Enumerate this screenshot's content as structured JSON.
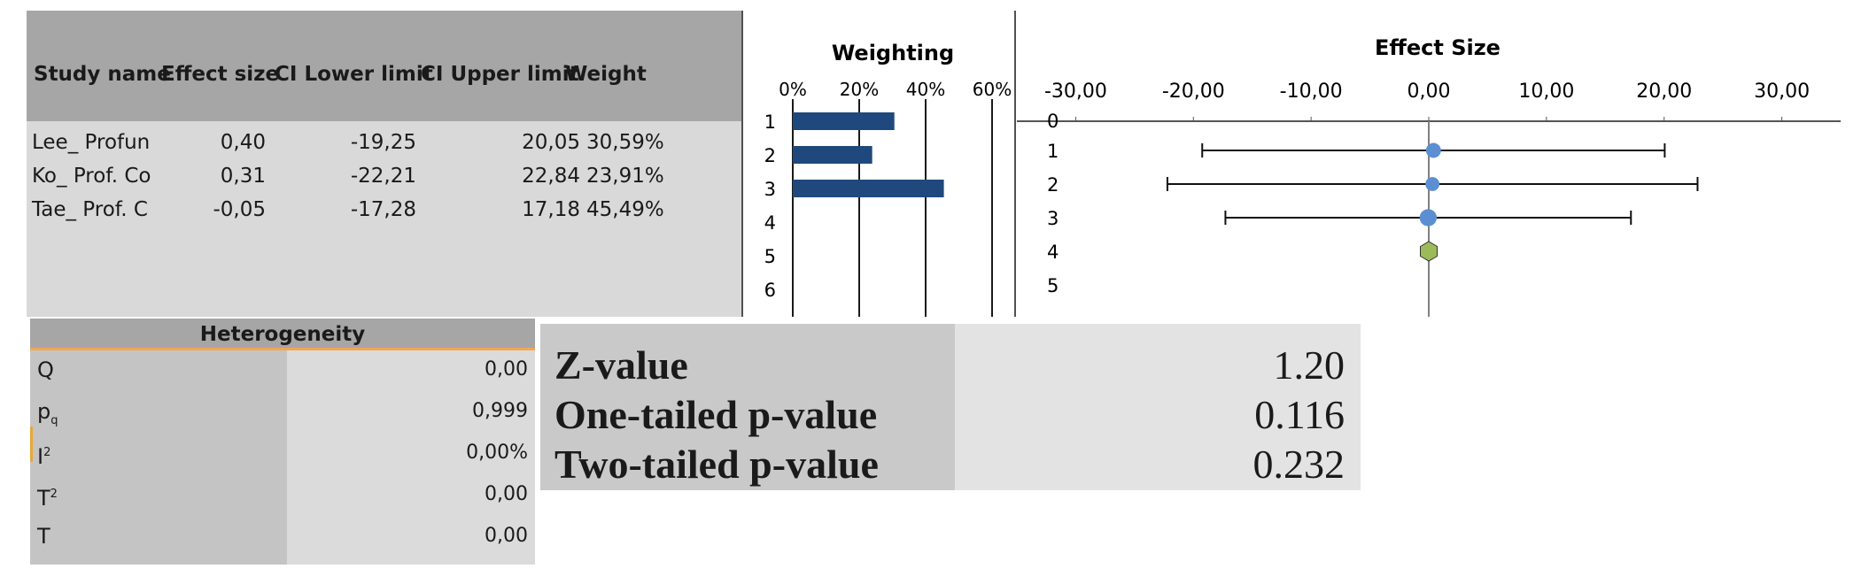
{
  "study_table": {
    "headers": {
      "study": "Study name",
      "effect": "Effect size",
      "lower": "CI Lower limit",
      "upper": "CI Upper limit",
      "weight": "Weight"
    },
    "rows": [
      {
        "study": "Lee_ Profun",
        "effect": "0,40",
        "lower": "-19,25",
        "upper": "20,05",
        "weight": "30,59%"
      },
      {
        "study": "Ko_ Prof. Co",
        "effect": "0,31",
        "lower": "-22,21",
        "upper": "22,84",
        "weight": "23,91%"
      },
      {
        "study": "Tae_ Prof. C",
        "effect": "-0,05",
        "lower": "-17,28",
        "upper": "17,18",
        "weight": "45,49%"
      }
    ]
  },
  "chart_data": [
    {
      "type": "bar",
      "title": "Weighting",
      "orientation": "horizontal",
      "x_ticks": [
        "0%",
        "20%",
        "40%",
        "60%"
      ],
      "xlim": [
        0,
        60
      ],
      "categories": [
        "1",
        "2",
        "3",
        "4",
        "5",
        "6"
      ],
      "values": [
        30.59,
        23.91,
        45.49,
        null,
        null,
        null
      ],
      "bar_color": "#1f497d",
      "grid": true
    },
    {
      "type": "scatter",
      "title": "Effect Size",
      "x_ticks": [
        "-30,00",
        "-20,00",
        "-10,00",
        "0,00",
        "10,00",
        "20,00",
        "30,00"
      ],
      "xlim": [
        -35,
        35
      ],
      "y_ticks": [
        "0",
        "1",
        "2",
        "3",
        "4",
        "5"
      ],
      "series": [
        {
          "marker": "circle",
          "color": "#5b8fd1",
          "points": [
            {
              "y": 1,
              "x": 0.4,
              "lower": -19.25,
              "upper": 20.05,
              "weight": 30.59
            },
            {
              "y": 2,
              "x": 0.31,
              "lower": -22.21,
              "upper": 22.84,
              "weight": 23.91
            },
            {
              "y": 3,
              "x": -0.05,
              "lower": -17.28,
              "upper": 17.18,
              "weight": 45.49
            }
          ]
        },
        {
          "marker": "hexagon",
          "color": "#9bbb59",
          "points": [
            {
              "y": 4,
              "x": 0.0
            }
          ]
        }
      ]
    }
  ],
  "heterogeneity": {
    "title": "Heterogeneity",
    "rows": [
      {
        "label": "Q",
        "sub": "",
        "sup": "",
        "value": "0,00"
      },
      {
        "label": "p",
        "sub": "q",
        "sup": "",
        "value": "0,999"
      },
      {
        "label": "I",
        "sub": "",
        "sup": "2",
        "value": "0,00%"
      },
      {
        "label": "T",
        "sub": "",
        "sup": "2",
        "value": "0,00"
      },
      {
        "label": "T",
        "sub": "",
        "sup": "",
        "value": "0,00"
      }
    ]
  },
  "stats": [
    {
      "label": "Z-value",
      "value": "1.20"
    },
    {
      "label": "One-tailed p-value",
      "value": "0.116"
    },
    {
      "label": "Two-tailed p-value",
      "value": "0.232"
    }
  ]
}
